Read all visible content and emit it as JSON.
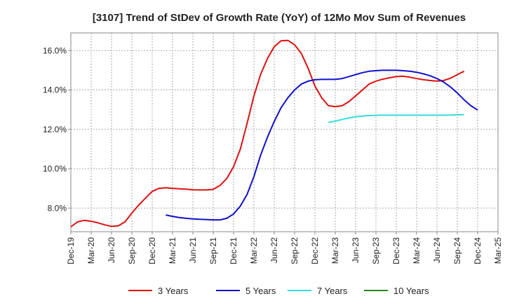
{
  "chart_data": {
    "type": "line",
    "title": "[3107]  Trend of StDev of Growth Rate (YoY) of 12Mo Mov Sum of Revenues",
    "xlabel": "",
    "ylabel": "",
    "ylim": [
      6.8,
      16.9
    ],
    "y_ticks": [
      8.0,
      10.0,
      12.0,
      14.0,
      16.0
    ],
    "y_tick_labels": [
      "8.0%",
      "10.0%",
      "12.0%",
      "14.0%",
      "16.0%"
    ],
    "x_tick_labels": [
      "Dec-19",
      "Mar-20",
      "Jun-20",
      "Sep-20",
      "Dec-20",
      "Mar-21",
      "Jun-21",
      "Sep-21",
      "Dec-21",
      "Mar-22",
      "Jun-22",
      "Sep-22",
      "Dec-22",
      "Mar-23",
      "Jun-23",
      "Sep-23",
      "Dec-23",
      "Mar-24",
      "Jun-24",
      "Sep-24",
      "Dec-24",
      "Mar-25"
    ],
    "grid": true,
    "legend_position": "bottom",
    "colors": {
      "3 Years": "#dd1111",
      "5 Years": "#1111cc",
      "7 Years": "#33dddd",
      "10 Years": "#228822"
    },
    "series": [
      {
        "name": "3 Years",
        "start_index": 0,
        "values": [
          7.05,
          7.3,
          7.38,
          7.33,
          7.25,
          7.15,
          7.07,
          7.1,
          7.3,
          7.75,
          8.15,
          8.5,
          8.85,
          9.0,
          9.03,
          9.0,
          8.98,
          8.96,
          8.93,
          8.92,
          8.92,
          8.95,
          9.15,
          9.5,
          10.1,
          11.0,
          12.3,
          13.7,
          14.8,
          15.6,
          16.2,
          16.5,
          16.52,
          16.3,
          15.85,
          15.1,
          14.2,
          13.6,
          13.2,
          13.15,
          13.2,
          13.4,
          13.7,
          14.0,
          14.3,
          14.45,
          14.55,
          14.62,
          14.68,
          14.7,
          14.65,
          14.58,
          14.52,
          14.48,
          14.45,
          14.48,
          14.6,
          14.78,
          14.95
        ]
      },
      {
        "name": "5 Years",
        "start_index": 14,
        "values": [
          7.65,
          7.58,
          7.52,
          7.48,
          7.45,
          7.43,
          7.42,
          7.4,
          7.4,
          7.48,
          7.7,
          8.1,
          8.7,
          9.6,
          10.7,
          11.6,
          12.4,
          13.1,
          13.6,
          14.0,
          14.3,
          14.45,
          14.52,
          14.54,
          14.54,
          14.54,
          14.58,
          14.68,
          14.78,
          14.88,
          14.95,
          14.98,
          15.0,
          15.0,
          15.0,
          14.98,
          14.95,
          14.9,
          14.82,
          14.72,
          14.58,
          14.4,
          14.15,
          13.85,
          13.5,
          13.2,
          12.98
        ]
      },
      {
        "name": "7 Years",
        "start_index": 38,
        "values": [
          12.35,
          12.42,
          12.5,
          12.58,
          12.64,
          12.68,
          12.7,
          12.71,
          12.72,
          12.72,
          12.72,
          12.72,
          12.72,
          12.72,
          12.72,
          12.72,
          12.72,
          12.72,
          12.73,
          12.74,
          12.75
        ]
      },
      {
        "name": "10 Years",
        "start_index": 0,
        "values": []
      }
    ]
  }
}
